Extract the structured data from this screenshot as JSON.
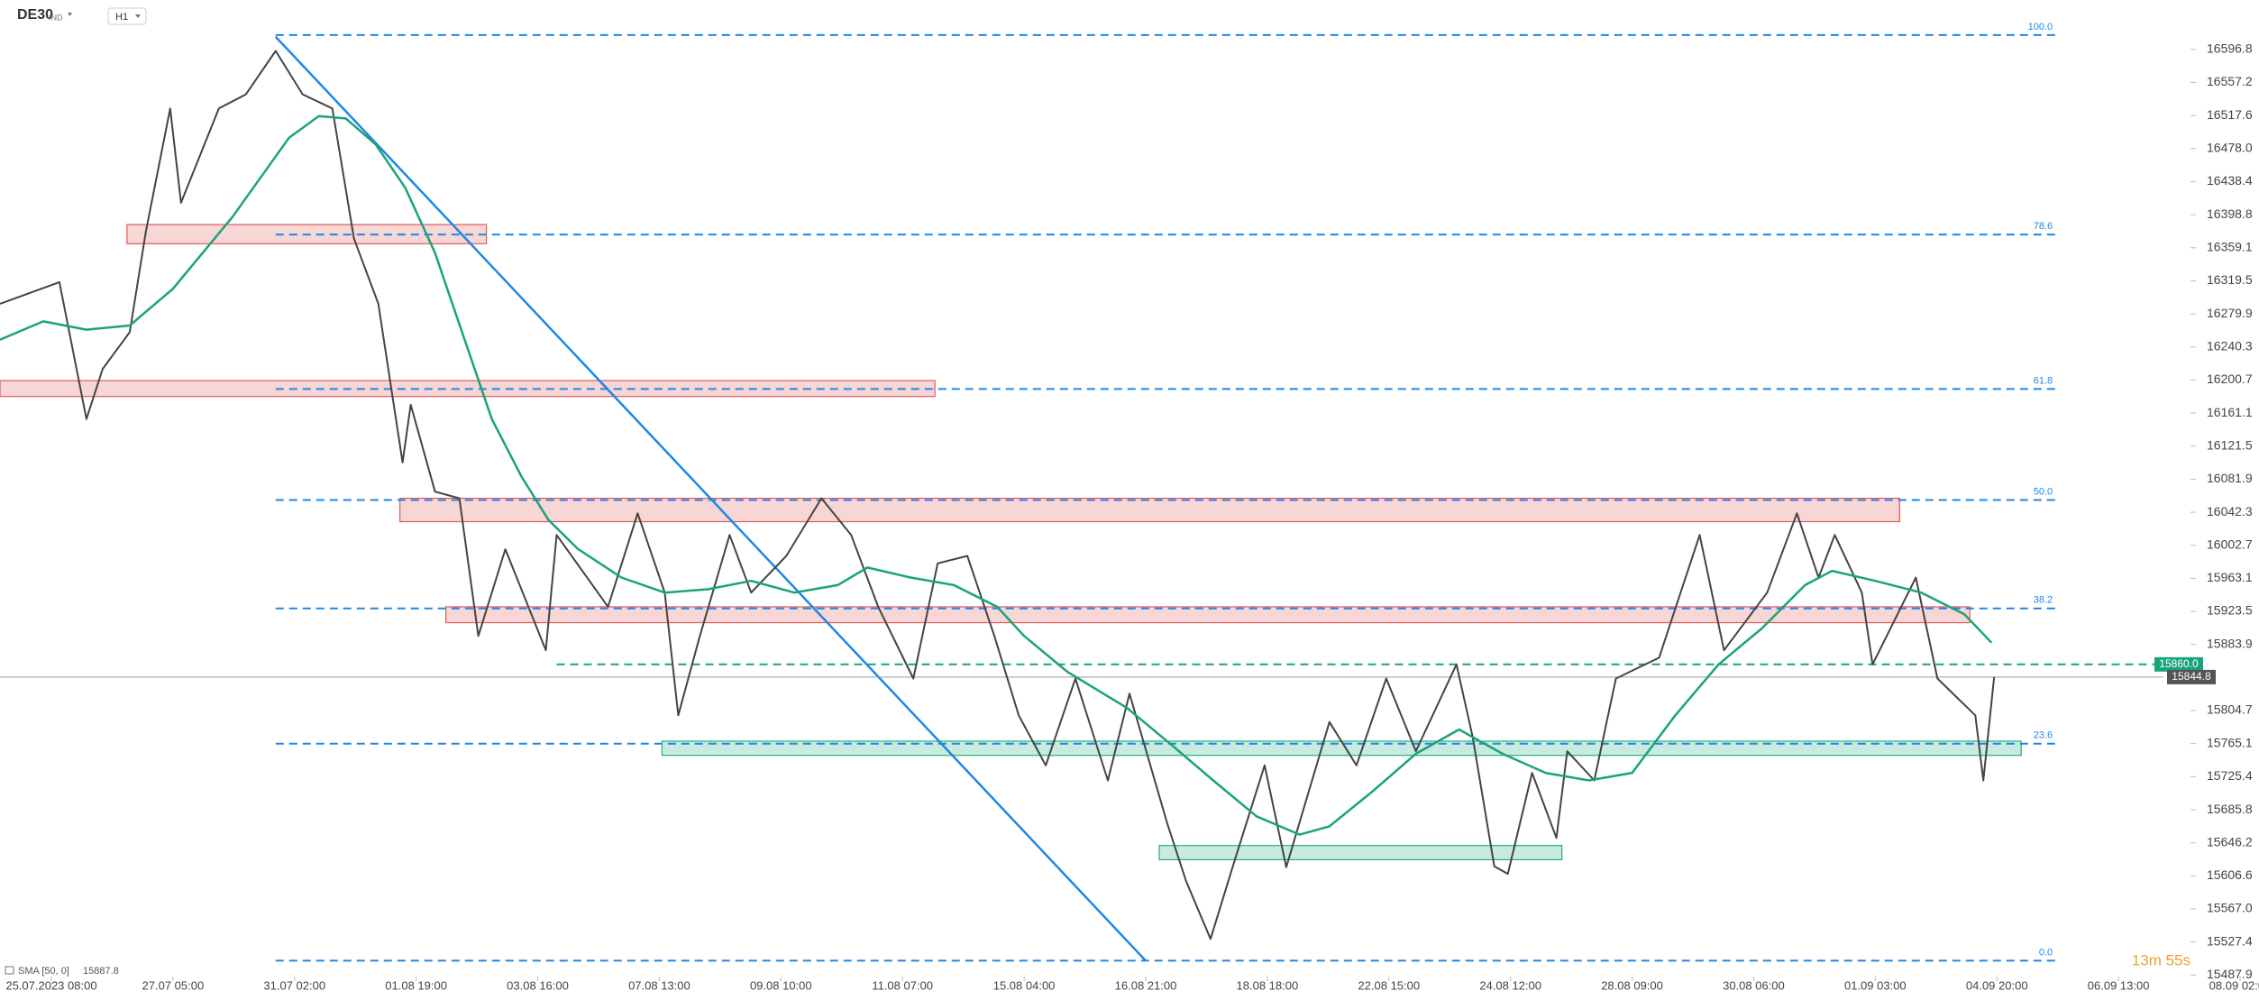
{
  "chart_data": {
    "type": "line",
    "title": "DE30",
    "market": "IND",
    "timeframe": "H1",
    "xlim": [
      -19,
      817
    ],
    "ylim": [
      15486,
      16656
    ],
    "xticks": [
      {
        "value": 0,
        "label": "25.07.2023 08:00"
      },
      {
        "value": 45,
        "label": "27.07 05:00"
      },
      {
        "value": 90,
        "label": "31.07 02:00"
      },
      {
        "value": 135,
        "label": "01.08 19:00"
      },
      {
        "value": 180,
        "label": "03.08 16:00"
      },
      {
        "value": 225,
        "label": "07.08 13:00"
      },
      {
        "value": 270,
        "label": "09.08 10:00"
      },
      {
        "value": 315,
        "label": "11.08 07:00"
      },
      {
        "value": 360,
        "label": "15.08 04:00"
      },
      {
        "value": 405,
        "label": "16.08 21:00"
      },
      {
        "value": 450,
        "label": "18.08 18:00"
      },
      {
        "value": 495,
        "label": "22.08 15:00"
      },
      {
        "value": 540,
        "label": "24.08 12:00"
      },
      {
        "value": 585,
        "label": "28.08 09:00"
      },
      {
        "value": 630,
        "label": "30.08 06:00"
      },
      {
        "value": 675,
        "label": "01.09 03:00"
      },
      {
        "value": 720,
        "label": "04.09 20:00"
      },
      {
        "value": 765,
        "label": "06.09 13:00"
      },
      {
        "value": 810,
        "label": "08.09 02:00"
      }
    ],
    "yticks": [
      16596.8,
      16557.2,
      16517.6,
      {
        "value": 16478,
        "label": "16478.0"
      },
      16438.4,
      16398.8,
      16359.1,
      16319.5,
      16279.9,
      16240.3,
      16200.7,
      16161.1,
      16121.5,
      16081.9,
      16042.3,
      16002.7,
      15963.1,
      15923.5,
      15883.9,
      15804.7,
      15765.1,
      15725.4,
      15685.8,
      15646.2,
      15606.6,
      {
        "value": 15567,
        "label": "15567.0"
      },
      15527.4,
      15487.9
    ],
    "series": [
      {
        "name": "DE30",
        "color": "#444444",
        "x": [
          -19,
          3,
          13,
          19,
          29,
          35,
          44,
          48,
          62,
          72,
          83,
          93,
          104,
          112,
          121,
          130,
          133,
          142,
          151,
          158,
          168,
          183,
          187,
          206,
          217,
          227,
          232,
          240,
          251,
          259,
          272,
          285,
          296,
          306,
          319,
          328,
          339,
          349,
          358,
          368,
          379,
          391,
          399,
          413,
          420,
          429,
          438,
          449,
          457,
          473,
          483,
          494,
          505,
          520,
          526,
          534,
          539,
          548,
          557,
          561,
          571,
          579,
          595,
          610,
          619,
          635,
          646,
          654,
          660,
          670,
          674,
          690,
          698,
          712,
          715,
          719
        ],
        "values": [
          16292,
          16318,
          16154,
          16214,
          16258,
          16379,
          16526,
          16413,
          16526,
          16543,
          16595,
          16543,
          16526,
          16370,
          16292,
          16102,
          16171,
          16067,
          16059,
          15894,
          15998,
          15877,
          16015,
          15929,
          16041,
          15946,
          15799,
          15894,
          16015,
          15946,
          15990,
          16059,
          16015,
          15929,
          15843,
          15981,
          15990,
          15894,
          15799,
          15739,
          15843,
          15721,
          15825,
          15669,
          15600,
          15531,
          15626,
          15739,
          15617,
          15791,
          15739,
          15843,
          15756,
          15860,
          15773,
          15618,
          15609,
          15730,
          15652,
          15756,
          15721,
          15843,
          15868,
          16015,
          15877,
          15946,
          16041,
          15964,
          16015,
          15946,
          15860,
          15964,
          15843,
          15799,
          15721,
          15845
        ]
      },
      {
        "name": "SMA [50, 0]",
        "color": "#1aa37a",
        "last_value": 15887.8,
        "x": [
          -19,
          -3,
          13,
          29,
          45,
          67,
          88,
          99,
          109,
          120,
          131,
          142,
          152,
          163,
          174,
          184,
          195,
          211,
          227,
          243,
          259,
          275,
          291,
          302,
          318,
          334,
          350,
          360,
          376,
          398,
          414,
          430,
          446,
          462,
          473,
          489,
          505,
          521,
          537,
          553,
          569,
          585,
          601,
          617,
          633,
          649,
          659,
          675,
          692,
          708,
          718
        ],
        "values": [
          16249,
          16271,
          16261,
          16266,
          16310,
          16396,
          16491,
          16517,
          16514,
          16483,
          16431,
          16353,
          16258,
          16154,
          16085,
          16033,
          15998,
          15964,
          15946,
          15950,
          15960,
          15946,
          15955,
          15976,
          15964,
          15955,
          15929,
          15894,
          15851,
          15808,
          15765,
          15721,
          15678,
          15656,
          15666,
          15708,
          15753,
          15782,
          15753,
          15730,
          15721,
          15730,
          15799,
          15860,
          15903,
          15955,
          15972,
          15960,
          15946,
          15920,
          15886
        ]
      }
    ],
    "fib_levels": {
      "color": "#1e88e5",
      "start": 83,
      "end": 742,
      "levels": [
        {
          "label": "100.0",
          "price": 16614
        },
        {
          "label": "78.6",
          "price": 16375
        },
        {
          "label": "61.8",
          "price": 16190
        },
        {
          "label": "50.0",
          "price": 16057
        },
        {
          "label": "38.2",
          "price": 15927
        },
        {
          "label": "23.6",
          "price": 15765
        },
        {
          "label": "0.0",
          "price": 15505
        }
      ]
    },
    "trendline": {
      "color": "#1e88e5",
      "x": [
        83,
        405
      ],
      "values": [
        16612,
        15505
      ]
    },
    "zones": [
      {
        "color": "#e05a5a",
        "start": 28,
        "end": 161,
        "low": 16364,
        "high": 16387
      },
      {
        "color": "#e05a5a",
        "start": -19,
        "end": 327,
        "low": 16181,
        "high": 16200
      },
      {
        "color": "#e05a5a",
        "start": 129,
        "end": 684,
        "low": 16031,
        "high": 16059
      },
      {
        "color": "#e05a5a",
        "start": 146,
        "end": 710,
        "low": 15910,
        "high": 15929
      },
      {
        "color": "#26b07e",
        "start": 226,
        "end": 729,
        "low": 15751,
        "high": 15768
      },
      {
        "color": "#26b07e",
        "start": 410,
        "end": 559,
        "low": 15626,
        "high": 15643
      }
    ],
    "level": {
      "value": 15860,
      "label": "15860.0",
      "start": 187,
      "color": "#1aa37a"
    },
    "current_price": {
      "value": 15844.8,
      "label": "15844.8",
      "color": "#555555"
    },
    "countdown": "13m 55s"
  }
}
